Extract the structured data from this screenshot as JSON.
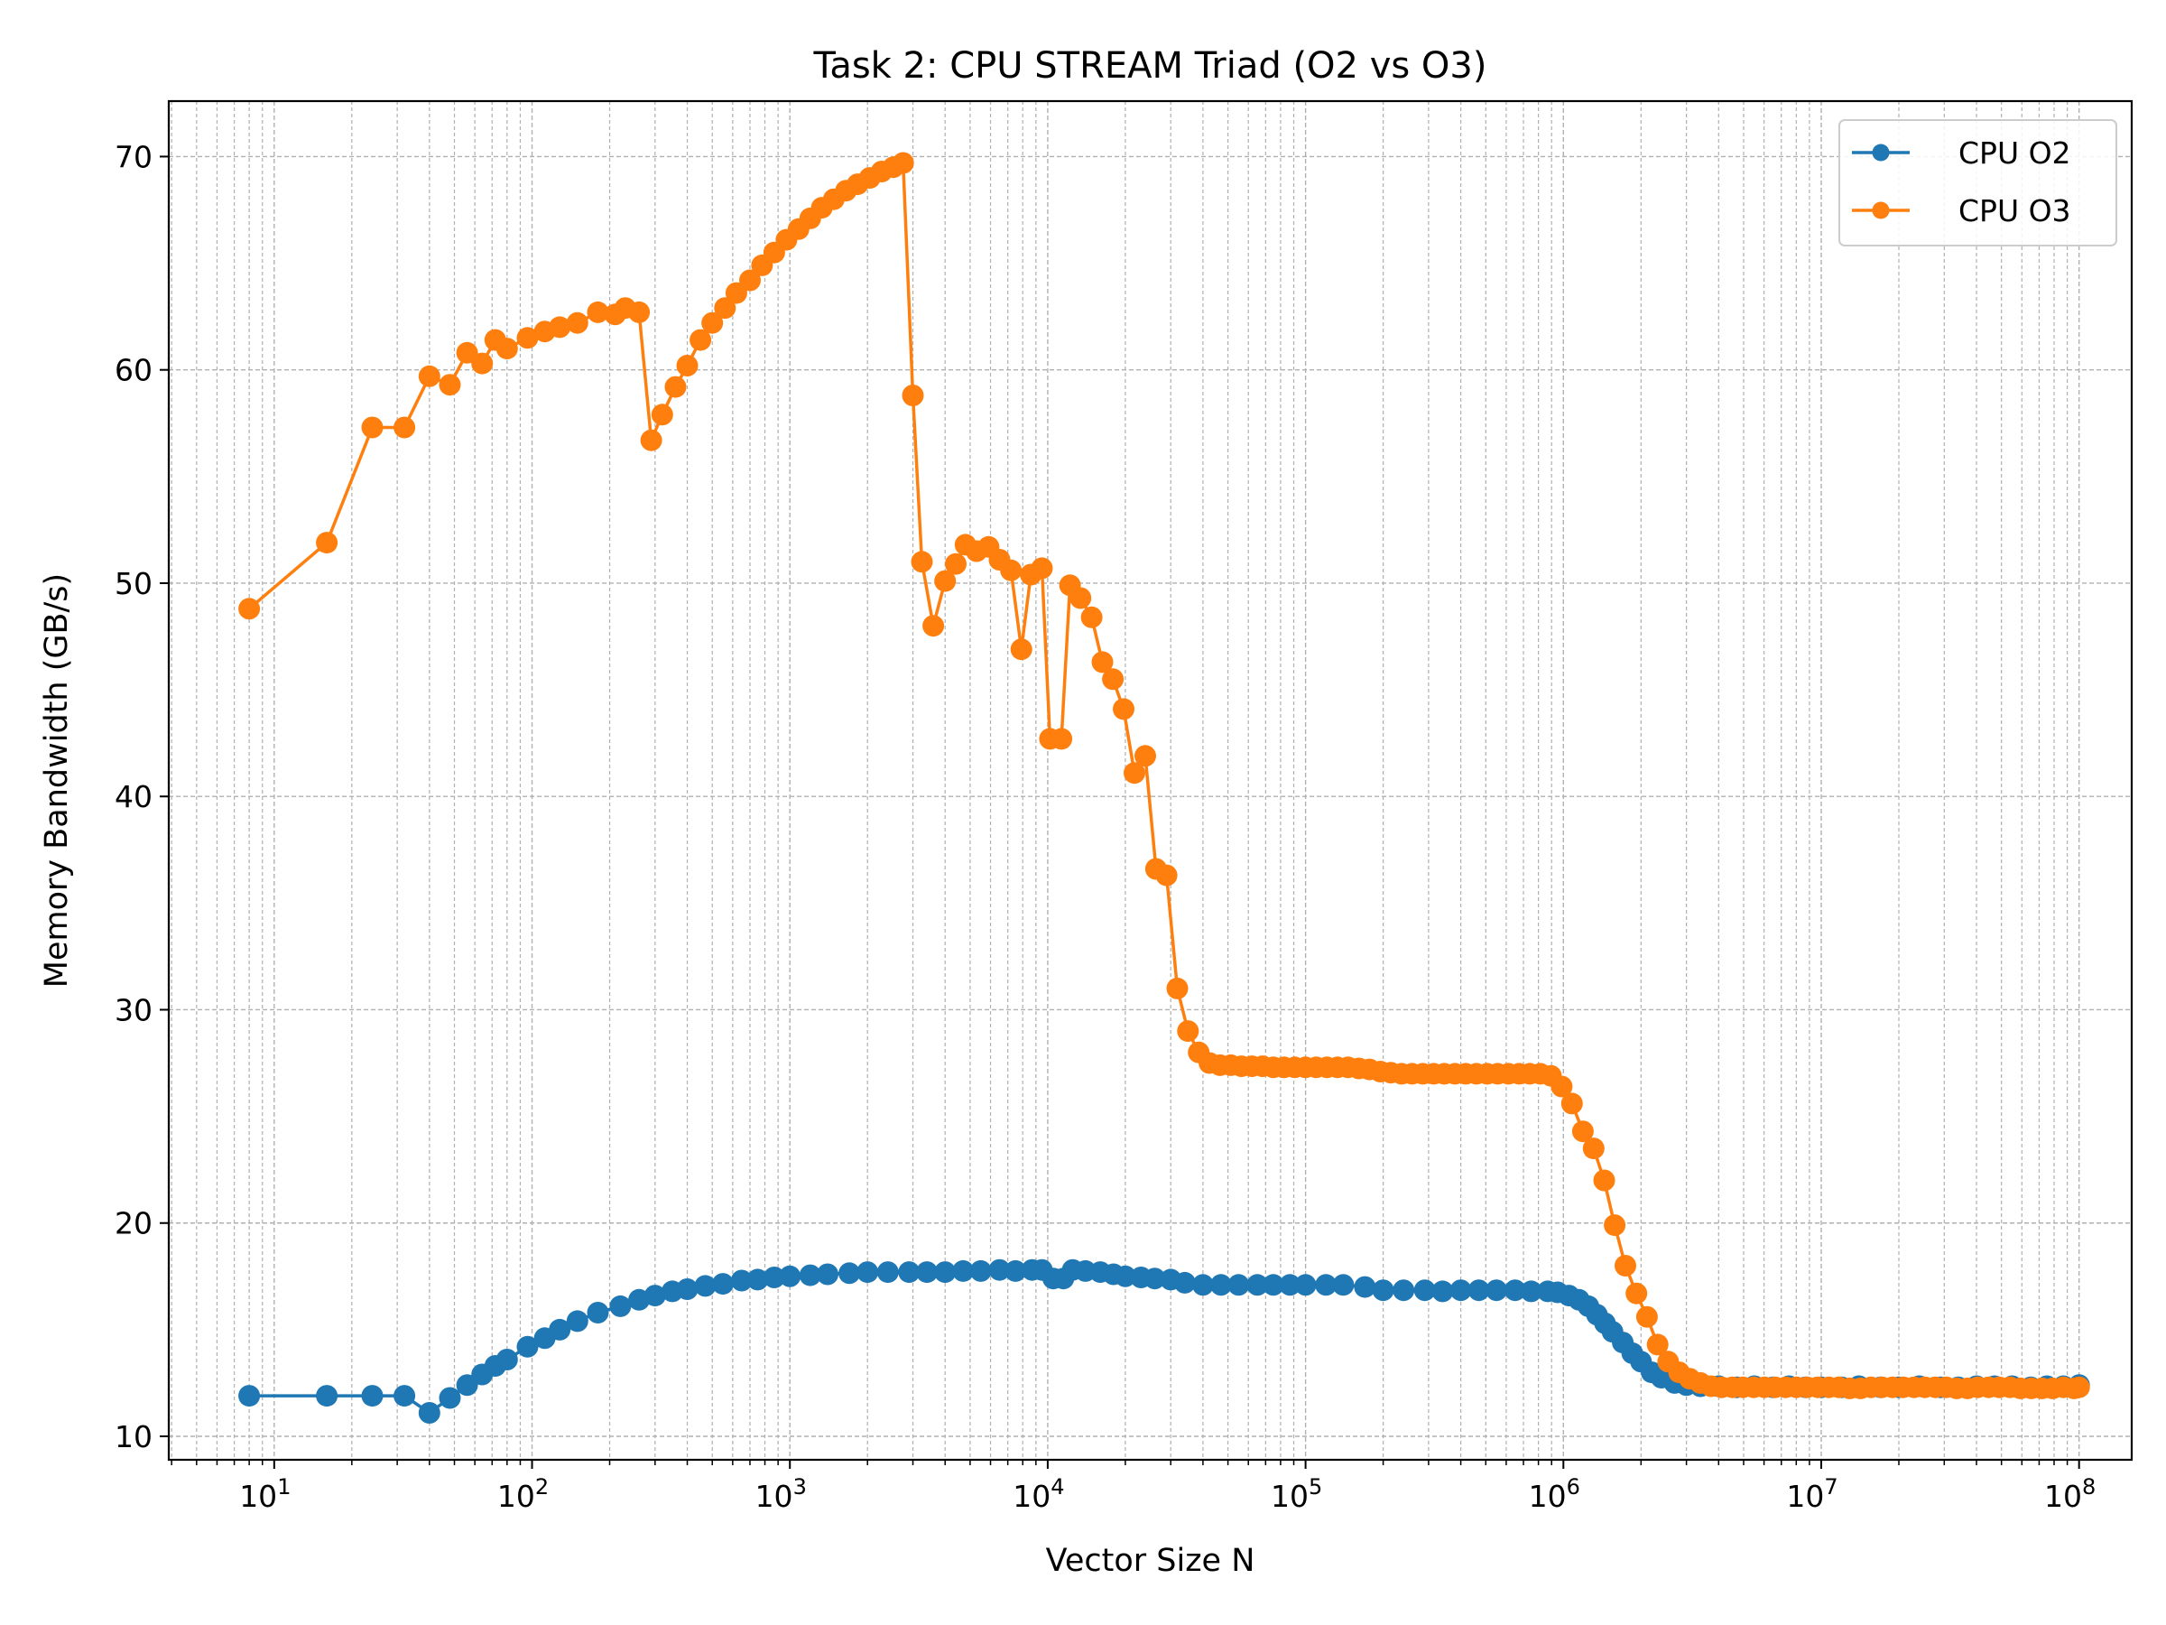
{
  "colors": {
    "o2": "#1f77b4",
    "o3": "#ff7f0e",
    "grid": "#b0b0b0",
    "axes": "#000000"
  },
  "chart_data": {
    "type": "line",
    "title": "Task 2: CPU STREAM Triad (O2 vs O3)",
    "xlabel": "Vector Size N",
    "ylabel": "Memory Bandwidth (GB/s)",
    "xscale": "log",
    "xlim": [
      3.9,
      160000000
    ],
    "ylim": [
      8.9,
      72.6
    ],
    "xticks": [
      10,
      100,
      1000,
      10000,
      100000,
      1000000,
      10000000,
      100000000
    ],
    "xtick_labels": [
      {
        "base": "10",
        "exp": "1"
      },
      {
        "base": "10",
        "exp": "2"
      },
      {
        "base": "10",
        "exp": "3"
      },
      {
        "base": "10",
        "exp": "4"
      },
      {
        "base": "10",
        "exp": "5"
      },
      {
        "base": "10",
        "exp": "6"
      },
      {
        "base": "10",
        "exp": "7"
      },
      {
        "base": "10",
        "exp": "8"
      }
    ],
    "yticks": [
      10,
      20,
      30,
      40,
      50,
      60,
      70
    ],
    "ytick_labels": [
      "10",
      "20",
      "30",
      "40",
      "50",
      "60",
      "70"
    ],
    "grid": true,
    "legend_position": "top-right",
    "series": [
      {
        "name": "CPU O2",
        "color": "#1f77b4",
        "marker": "circle",
        "points": [
          [
            8,
            11.9
          ],
          [
            16,
            11.9
          ],
          [
            24,
            11.9
          ],
          [
            32,
            11.9
          ],
          [
            40,
            11.1
          ],
          [
            48,
            11.8
          ],
          [
            56,
            12.4
          ],
          [
            64,
            12.9
          ],
          [
            72,
            13.3
          ],
          [
            80,
            13.6
          ],
          [
            96,
            14.2
          ],
          [
            112,
            14.6
          ],
          [
            128,
            15.0
          ],
          [
            150,
            15.4
          ],
          [
            180,
            15.8
          ],
          [
            220,
            16.1
          ],
          [
            260,
            16.4
          ],
          [
            300,
            16.6
          ],
          [
            350,
            16.8
          ],
          [
            400,
            16.9
          ],
          [
            470,
            17.05
          ],
          [
            550,
            17.15
          ],
          [
            650,
            17.3
          ],
          [
            750,
            17.35
          ],
          [
            870,
            17.45
          ],
          [
            1000,
            17.5
          ],
          [
            1200,
            17.55
          ],
          [
            1400,
            17.6
          ],
          [
            1700,
            17.65
          ],
          [
            2000,
            17.7
          ],
          [
            2400,
            17.7
          ],
          [
            2900,
            17.7
          ],
          [
            3400,
            17.7
          ],
          [
            4000,
            17.7
          ],
          [
            4700,
            17.75
          ],
          [
            5500,
            17.75
          ],
          [
            6500,
            17.8
          ],
          [
            7500,
            17.75
          ],
          [
            8700,
            17.8
          ],
          [
            9500,
            17.8
          ],
          [
            10500,
            17.4
          ],
          [
            11500,
            17.4
          ],
          [
            12500,
            17.8
          ],
          [
            14000,
            17.75
          ],
          [
            16000,
            17.7
          ],
          [
            18000,
            17.6
          ],
          [
            20000,
            17.5
          ],
          [
            23000,
            17.45
          ],
          [
            26000,
            17.4
          ],
          [
            30000,
            17.35
          ],
          [
            34000,
            17.2
          ],
          [
            40000,
            17.1
          ],
          [
            47000,
            17.1
          ],
          [
            55000,
            17.1
          ],
          [
            65000,
            17.1
          ],
          [
            75000,
            17.1
          ],
          [
            87000,
            17.1
          ],
          [
            100000,
            17.1
          ],
          [
            120000,
            17.1
          ],
          [
            140000,
            17.1
          ],
          [
            170000,
            17.0
          ],
          [
            200000,
            16.85
          ],
          [
            240000,
            16.85
          ],
          [
            290000,
            16.85
          ],
          [
            340000,
            16.8
          ],
          [
            400000,
            16.85
          ],
          [
            470000,
            16.85
          ],
          [
            550000,
            16.85
          ],
          [
            650000,
            16.85
          ],
          [
            750000,
            16.8
          ],
          [
            870000,
            16.8
          ],
          [
            950000,
            16.75
          ],
          [
            1050000,
            16.6
          ],
          [
            1150000,
            16.4
          ],
          [
            1250000,
            16.1
          ],
          [
            1350000,
            15.7
          ],
          [
            1450000,
            15.3
          ],
          [
            1550000,
            14.9
          ],
          [
            1700000,
            14.4
          ],
          [
            1850000,
            13.9
          ],
          [
            2000000,
            13.5
          ],
          [
            2200000,
            13.0
          ],
          [
            2400000,
            12.75
          ],
          [
            2700000,
            12.5
          ],
          [
            3000000,
            12.4
          ],
          [
            3400000,
            12.35
          ],
          [
            4000000,
            12.35
          ],
          [
            4700000,
            12.3
          ],
          [
            5500000,
            12.35
          ],
          [
            6500000,
            12.3
          ],
          [
            7500000,
            12.35
          ],
          [
            8700000,
            12.3
          ],
          [
            10000000,
            12.3
          ],
          [
            12000000,
            12.3
          ],
          [
            14000000,
            12.35
          ],
          [
            17000000,
            12.3
          ],
          [
            20000000,
            12.3
          ],
          [
            24000000,
            12.35
          ],
          [
            29000000,
            12.3
          ],
          [
            34000000,
            12.3
          ],
          [
            40000000,
            12.35
          ],
          [
            47000000,
            12.35
          ],
          [
            55000000,
            12.35
          ],
          [
            65000000,
            12.3
          ],
          [
            75000000,
            12.35
          ],
          [
            87000000,
            12.35
          ],
          [
            100000000,
            12.4
          ]
        ]
      },
      {
        "name": "CPU O3",
        "color": "#ff7f0e",
        "marker": "circle",
        "points": [
          [
            8,
            48.8
          ],
          [
            16,
            51.9
          ],
          [
            24,
            57.3
          ],
          [
            32,
            57.3
          ],
          [
            40,
            59.7
          ],
          [
            48,
            59.3
          ],
          [
            56,
            60.8
          ],
          [
            64,
            60.3
          ],
          [
            72,
            61.4
          ],
          [
            80,
            61.0
          ],
          [
            96,
            61.5
          ],
          [
            112,
            61.8
          ],
          [
            128,
            62.0
          ],
          [
            150,
            62.2
          ],
          [
            180,
            62.7
          ],
          [
            210,
            62.6
          ],
          [
            230,
            62.9
          ],
          [
            260,
            62.7
          ],
          [
            290,
            56.7
          ],
          [
            320,
            57.9
          ],
          [
            360,
            59.2
          ],
          [
            400,
            60.2
          ],
          [
            450,
            61.4
          ],
          [
            500,
            62.2
          ],
          [
            560,
            62.9
          ],
          [
            620,
            63.6
          ],
          [
            700,
            64.2
          ],
          [
            780,
            64.9
          ],
          [
            870,
            65.5
          ],
          [
            970,
            66.1
          ],
          [
            1080,
            66.6
          ],
          [
            1200,
            67.1
          ],
          [
            1330,
            67.6
          ],
          [
            1480,
            68.0
          ],
          [
            1650,
            68.4
          ],
          [
            1830,
            68.7
          ],
          [
            2040,
            69.0
          ],
          [
            2270,
            69.3
          ],
          [
            2520,
            69.5
          ],
          [
            2750,
            69.7
          ],
          [
            3000,
            58.8
          ],
          [
            3250,
            51.0
          ],
          [
            3600,
            48.0
          ],
          [
            4000,
            50.1
          ],
          [
            4400,
            50.9
          ],
          [
            4800,
            51.8
          ],
          [
            5300,
            51.5
          ],
          [
            5900,
            51.7
          ],
          [
            6500,
            51.1
          ],
          [
            7200,
            50.6
          ],
          [
            7900,
            46.9
          ],
          [
            8600,
            50.4
          ],
          [
            9500,
            50.7
          ],
          [
            10200,
            42.7
          ],
          [
            11300,
            42.7
          ],
          [
            12200,
            49.9
          ],
          [
            13400,
            49.3
          ],
          [
            14800,
            48.4
          ],
          [
            16300,
            46.3
          ],
          [
            17900,
            45.5
          ],
          [
            19700,
            44.1
          ],
          [
            21700,
            41.1
          ],
          [
            23900,
            41.9
          ],
          [
            26300,
            36.6
          ],
          [
            28900,
            36.3
          ],
          [
            31800,
            31.0
          ],
          [
            35000,
            29.0
          ],
          [
            38500,
            28.0
          ],
          [
            42400,
            27.5
          ],
          [
            46600,
            27.4
          ],
          [
            51300,
            27.4
          ],
          [
            56400,
            27.35
          ],
          [
            62000,
            27.35
          ],
          [
            68200,
            27.35
          ],
          [
            75000,
            27.3
          ],
          [
            82500,
            27.3
          ],
          [
            90800,
            27.3
          ],
          [
            99900,
            27.3
          ],
          [
            110000,
            27.3
          ],
          [
            121000,
            27.3
          ],
          [
            133000,
            27.3
          ],
          [
            146000,
            27.3
          ],
          [
            161000,
            27.25
          ],
          [
            177000,
            27.2
          ],
          [
            195000,
            27.1
          ],
          [
            214000,
            27.05
          ],
          [
            236000,
            27.0
          ],
          [
            259000,
            27.0
          ],
          [
            285000,
            27.0
          ],
          [
            314000,
            27.0
          ],
          [
            345000,
            27.0
          ],
          [
            380000,
            27.0
          ],
          [
            418000,
            27.0
          ],
          [
            460000,
            27.0
          ],
          [
            506000,
            27.0
          ],
          [
            556000,
            27.0
          ],
          [
            612000,
            27.0
          ],
          [
            673000,
            27.0
          ],
          [
            740000,
            27.0
          ],
          [
            814000,
            27.0
          ],
          [
            895000,
            26.9
          ],
          [
            985000,
            26.4
          ],
          [
            1080000,
            25.6
          ],
          [
            1190000,
            24.3
          ],
          [
            1310000,
            23.5
          ],
          [
            1440000,
            22.0
          ],
          [
            1580000,
            19.9
          ],
          [
            1740000,
            18.0
          ],
          [
            1920000,
            16.7
          ],
          [
            2110000,
            15.6
          ],
          [
            2320000,
            14.3
          ],
          [
            2550000,
            13.5
          ],
          [
            2810000,
            13.0
          ],
          [
            3090000,
            12.7
          ],
          [
            3400000,
            12.5
          ],
          [
            3740000,
            12.35
          ],
          [
            4110000,
            12.3
          ],
          [
            4520000,
            12.3
          ],
          [
            4970000,
            12.3
          ],
          [
            5470000,
            12.3
          ],
          [
            6020000,
            12.3
          ],
          [
            6620000,
            12.3
          ],
          [
            7280000,
            12.3
          ],
          [
            8010000,
            12.3
          ],
          [
            8810000,
            12.3
          ],
          [
            9690000,
            12.3
          ],
          [
            10700000,
            12.3
          ],
          [
            11700000,
            12.3
          ],
          [
            12900000,
            12.25
          ],
          [
            14200000,
            12.25
          ],
          [
            15600000,
            12.3
          ],
          [
            17200000,
            12.3
          ],
          [
            18900000,
            12.3
          ],
          [
            20800000,
            12.3
          ],
          [
            22900000,
            12.3
          ],
          [
            25200000,
            12.3
          ],
          [
            27700000,
            12.3
          ],
          [
            30500000,
            12.3
          ],
          [
            33500000,
            12.25
          ],
          [
            36900000,
            12.25
          ],
          [
            40500000,
            12.3
          ],
          [
            44600000,
            12.3
          ],
          [
            49000000,
            12.3
          ],
          [
            53900000,
            12.3
          ],
          [
            59300000,
            12.25
          ],
          [
            65300000,
            12.25
          ],
          [
            71800000,
            12.25
          ],
          [
            79000000,
            12.25
          ],
          [
            86900000,
            12.3
          ],
          [
            95600000,
            12.25
          ],
          [
            100000000,
            12.3
          ]
        ]
      }
    ]
  }
}
